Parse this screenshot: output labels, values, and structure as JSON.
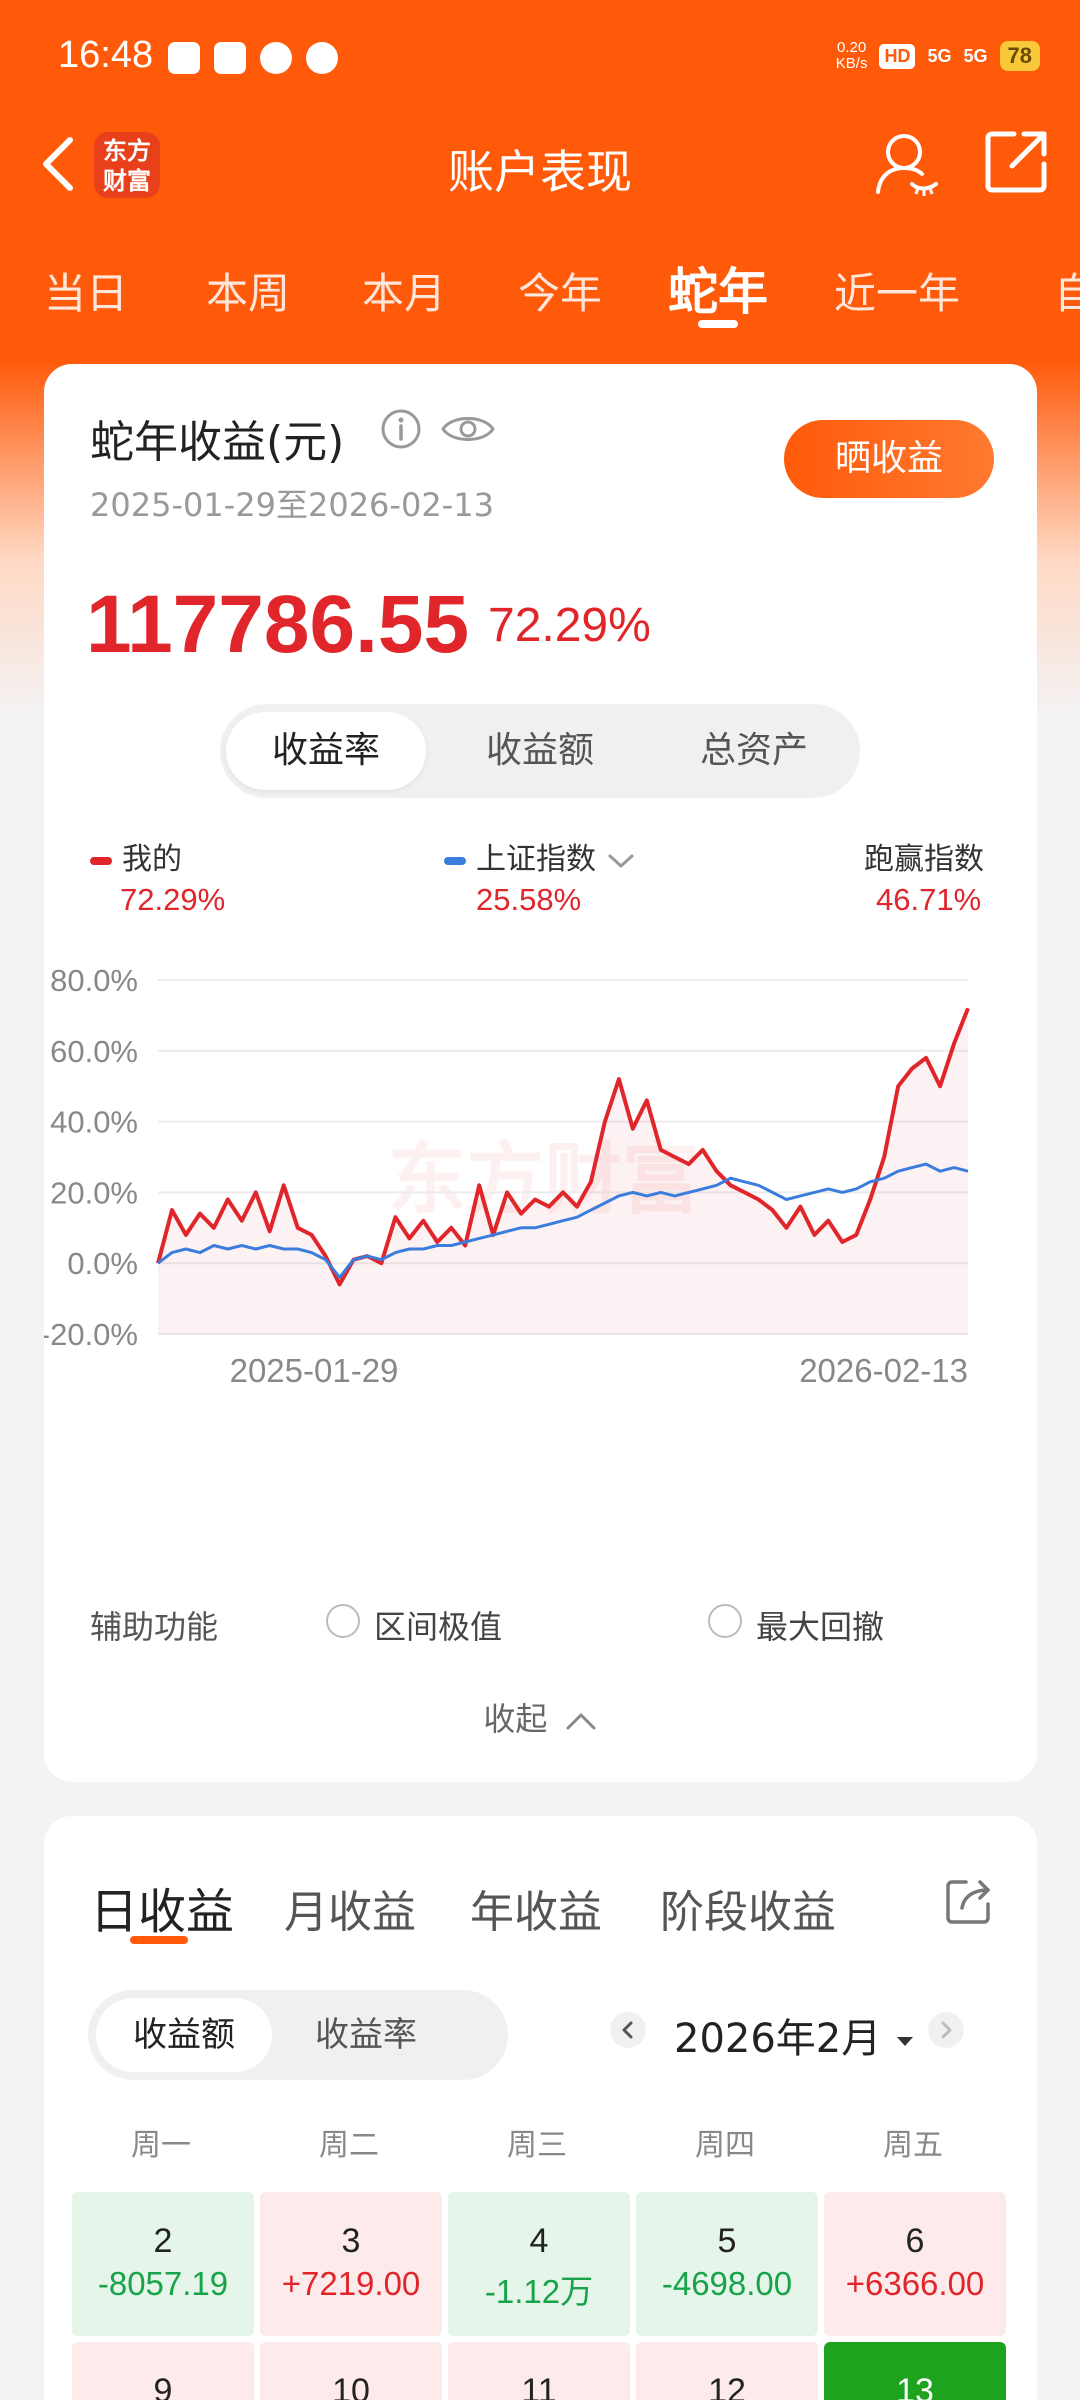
{
  "status_bar": {
    "time": "16:48",
    "net_speed": "0.20\nKB/s",
    "net_speed_value": "0.20",
    "net_speed_unit": "KB/s",
    "hd": "HD",
    "sim1": "5G",
    "sim2": "5G",
    "battery": "78"
  },
  "nav": {
    "title": "账户表现",
    "logo_text": "东方财富"
  },
  "period_tabs": [
    "当日",
    "本周",
    "本月",
    "今年",
    "蛇年",
    "近一年",
    "自"
  ],
  "active_period": "蛇年",
  "summary": {
    "title": "蛇年收益(元)",
    "date_range": "2025-01-29至2026-02-13",
    "share_button": "晒收益",
    "profit": "117786.55",
    "rate": "72.29%"
  },
  "chart_tabs": [
    "收益率",
    "收益额",
    "总资产"
  ],
  "legend": {
    "mine": {
      "label": "我的",
      "value": "72.29%",
      "color": "#e0262b"
    },
    "index": {
      "label": "上证指数",
      "value": "25.58%",
      "color": "#3b7ddd"
    },
    "outperform": {
      "label": "跑赢指数",
      "value": "46.71%"
    }
  },
  "chart_data": {
    "type": "line",
    "x_start": "2025-01-29",
    "x_end": "2026-02-13",
    "yticks": [
      "80.0%",
      "60.0%",
      "40.0%",
      "20.0%",
      "0.0%",
      "-20.0%"
    ],
    "ylim": [
      -20,
      80
    ],
    "watermark": "东方财富",
    "series": [
      {
        "name": "我的",
        "color": "#e0262b",
        "values": [
          0,
          15,
          8,
          14,
          10,
          18,
          12,
          20,
          9,
          22,
          10,
          8,
          2,
          -6,
          1,
          2,
          0,
          13,
          7,
          12,
          6,
          10,
          5,
          22,
          8,
          20,
          14,
          18,
          16,
          20,
          16,
          23,
          40,
          52,
          38,
          46,
          32,
          30,
          28,
          32,
          26,
          22,
          20,
          18,
          15,
          10,
          16,
          8,
          12,
          6,
          8,
          18,
          30,
          50,
          55,
          58,
          50,
          62,
          72
        ]
      },
      {
        "name": "上证指数",
        "color": "#3b7ddd",
        "values": [
          0,
          3,
          4,
          3,
          5,
          4,
          5,
          4,
          5,
          4,
          4,
          3,
          1,
          -4,
          1,
          2,
          1,
          3,
          4,
          4,
          5,
          5,
          6,
          7,
          8,
          9,
          10,
          10,
          11,
          12,
          13,
          15,
          17,
          19,
          20,
          19,
          20,
          19,
          20,
          21,
          22,
          24,
          23,
          22,
          20,
          18,
          19,
          20,
          21,
          20,
          21,
          23,
          24,
          26,
          27,
          28,
          26,
          27,
          26
        ]
      }
    ]
  },
  "aux": {
    "label": "辅助功能",
    "option1": "区间极值",
    "option2": "最大回撤",
    "collapse": "收起"
  },
  "profit_tabs": [
    "日收益",
    "月收益",
    "年收益",
    "阶段收益"
  ],
  "profit_segment": [
    "收益额",
    "收益率"
  ],
  "month": "2026年2月",
  "weekdays": [
    "周一",
    "周二",
    "周三",
    "周四",
    "周五"
  ],
  "calendar": [
    {
      "day": "2",
      "value": "-8057.19",
      "kind": "green"
    },
    {
      "day": "3",
      "value": "+7219.00",
      "kind": "red"
    },
    {
      "day": "4",
      "value": "-1.12万",
      "kind": "green"
    },
    {
      "day": "5",
      "value": "-4698.00",
      "kind": "green"
    },
    {
      "day": "6",
      "value": "+6366.00",
      "kind": "red"
    },
    {
      "day": "9",
      "value": "",
      "kind": "red"
    },
    {
      "day": "10",
      "value": "",
      "kind": "red"
    },
    {
      "day": "11",
      "value": "",
      "kind": "red"
    },
    {
      "day": "12",
      "value": "",
      "kind": "red"
    },
    {
      "day": "13",
      "value": "",
      "kind": "today"
    }
  ]
}
